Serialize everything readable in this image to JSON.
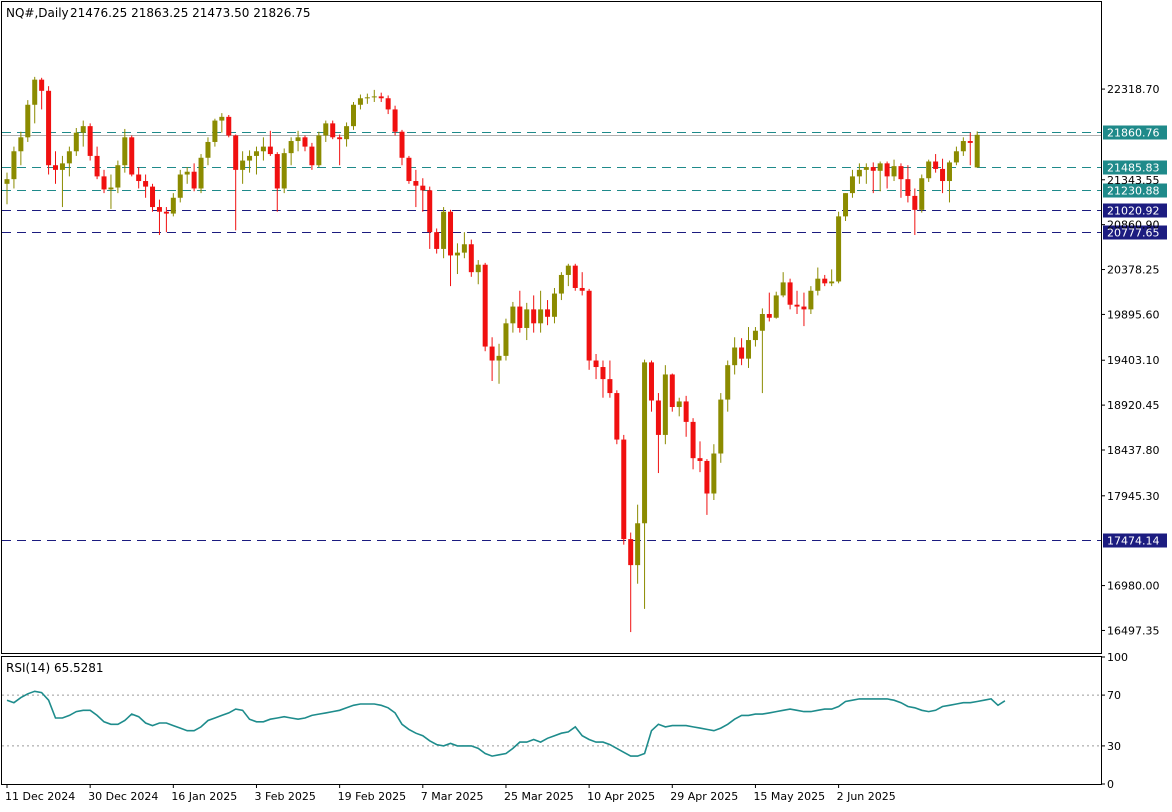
{
  "header": {
    "symbol_title": "NQ#,Daily",
    "ohlc_text": "21476.25 21863.25 21473.50 21826.75"
  },
  "rsi_panel": {
    "title": "RSI(14) 65.5281"
  },
  "colors": {
    "bull": "#8b8b00",
    "bear": "#f01010",
    "hline_teal": "#1f8a8a",
    "hline_navy": "#1c1c80",
    "rsi_line": "#1e8c8c",
    "level_line": "#9a9a9a",
    "axis": "#000000"
  },
  "chart_data": [
    {
      "type": "candlestick",
      "title": "NQ#,Daily",
      "ylim": [
        16255,
        23255
      ],
      "y_tick_labels": [
        "22318.70",
        "21343.55",
        "20860.90",
        "20378.25",
        "19895.60",
        "19403.10",
        "18920.45",
        "18437.80",
        "17945.30",
        "16980.00",
        "16497.35"
      ],
      "x_tick_labels": [
        "11 Dec 2024",
        "30 Dec 2024",
        "16 Jan 2025",
        "3 Feb 2025",
        "19 Feb 2025",
        "7 Mar 2025",
        "25 Mar 2025",
        "10 Apr 2025",
        "29 Apr 2025",
        "15 May 2025",
        "2 Jun 2025"
      ],
      "x_tick_bar_index": [
        0,
        12,
        24,
        36,
        48,
        60,
        72,
        84,
        96,
        108,
        120
      ],
      "horizontal_lines": [
        {
          "value": 21860.76,
          "label": "21860.76",
          "style": "dashed",
          "color": "teal",
          "label_bg": "teal"
        },
        {
          "value": 21485.83,
          "label": "21485.83",
          "style": "dashed",
          "color": "teal",
          "label_bg": "teal"
        },
        {
          "value": 21230.88,
          "label": "21230.88",
          "style": "dashed",
          "color": "teal",
          "label_bg": "teal"
        },
        {
          "value": 21020.92,
          "label": "21020.92",
          "style": "dashed",
          "color": "navy",
          "label_bg": "navy"
        },
        {
          "value": 20777.65,
          "label": "20777.65",
          "style": "dashed",
          "color": "navy",
          "label_bg": "navy"
        },
        {
          "value": 17474.14,
          "label": "17474.14",
          "style": "dashed",
          "color": "navy",
          "label_bg": "navy"
        }
      ],
      "current_price": 21826.75,
      "ohlc": [
        [
          21300,
          21420,
          21080,
          21350
        ],
        [
          21350,
          21700,
          21250,
          21650
        ],
        [
          21650,
          21860,
          21500,
          21800
        ],
        [
          21800,
          22200,
          21750,
          22150
        ],
        [
          22150,
          22450,
          21950,
          22420
        ],
        [
          22420,
          22440,
          22100,
          22300
        ],
        [
          22300,
          22350,
          21400,
          21500
        ],
        [
          21500,
          21650,
          21300,
          21450
        ],
        [
          21450,
          21600,
          21050,
          21520
        ],
        [
          21520,
          21700,
          21380,
          21650
        ],
        [
          21650,
          21900,
          21600,
          21850
        ],
        [
          21850,
          21980,
          21700,
          21920
        ],
        [
          21920,
          21950,
          21550,
          21600
        ],
        [
          21600,
          21700,
          21350,
          21380
        ],
        [
          21380,
          21450,
          21200,
          21240
        ],
        [
          21240,
          21400,
          21030,
          21260
        ],
        [
          21260,
          21550,
          21200,
          21500
        ],
        [
          21500,
          21890,
          21420,
          21800
        ],
        [
          21800,
          21820,
          21380,
          21400
        ],
        [
          21400,
          21480,
          21250,
          21330
        ],
        [
          21330,
          21400,
          21150,
          21270
        ],
        [
          21270,
          21300,
          21000,
          21050
        ],
        [
          21050,
          21130,
          20750,
          21000
        ],
        [
          21000,
          21050,
          20780,
          20980
        ],
        [
          20980,
          21200,
          20950,
          21150
        ],
        [
          21150,
          21450,
          21100,
          21400
        ],
        [
          21400,
          21480,
          21300,
          21430
        ],
        [
          21430,
          21520,
          21220,
          21250
        ],
        [
          21250,
          21620,
          21200,
          21580
        ],
        [
          21580,
          21800,
          21500,
          21750
        ],
        [
          21750,
          22000,
          21700,
          21980
        ],
        [
          21980,
          22060,
          21850,
          22020
        ],
        [
          22020,
          22040,
          21800,
          21820
        ],
        [
          21820,
          21830,
          20800,
          21450
        ],
        [
          21450,
          21650,
          21300,
          21550
        ],
        [
          21550,
          21660,
          21420,
          21600
        ],
        [
          21600,
          21700,
          21400,
          21650
        ],
        [
          21650,
          21800,
          21550,
          21700
        ],
        [
          21700,
          21870,
          21600,
          21620
        ],
        [
          21620,
          21640,
          21000,
          21250
        ],
        [
          21250,
          21680,
          21200,
          21630
        ],
        [
          21630,
          21800,
          21500,
          21760
        ],
        [
          21760,
          21870,
          21650,
          21800
        ],
        [
          21800,
          21820,
          21650,
          21700
        ],
        [
          21700,
          21740,
          21450,
          21500
        ],
        [
          21500,
          21860,
          21480,
          21820
        ],
        [
          21820,
          21980,
          21750,
          21950
        ],
        [
          21950,
          21980,
          21780,
          21800
        ],
        [
          21800,
          21830,
          21500,
          21780
        ],
        [
          21780,
          21960,
          21700,
          21920
        ],
        [
          21920,
          22180,
          21880,
          22150
        ],
        [
          22150,
          22260,
          22100,
          22220
        ],
        [
          22220,
          22270,
          22160,
          22230
        ],
        [
          22230,
          22310,
          22180,
          22240
        ],
        [
          22240,
          22280,
          22180,
          22220
        ],
        [
          22220,
          22250,
          22050,
          22100
        ],
        [
          22100,
          22140,
          21820,
          21860
        ],
        [
          21860,
          21880,
          21500,
          21580
        ],
        [
          21580,
          21600,
          21300,
          21330
        ],
        [
          21330,
          21450,
          21050,
          21280
        ],
        [
          21280,
          21360,
          21000,
          21230
        ],
        [
          21230,
          21270,
          20600,
          20780
        ],
        [
          20780,
          20820,
          20550,
          20600
        ],
        [
          20600,
          21050,
          20500,
          21000
        ],
        [
          21000,
          21020,
          20200,
          20530
        ],
        [
          20530,
          20660,
          20330,
          20560
        ],
        [
          20560,
          20780,
          20500,
          20650
        ],
        [
          20650,
          20700,
          20300,
          20350
        ],
        [
          20350,
          20480,
          20220,
          20430
        ],
        [
          20430,
          20450,
          19500,
          19550
        ],
        [
          19550,
          19650,
          19180,
          19400
        ],
        [
          19400,
          19580,
          19150,
          19450
        ],
        [
          19450,
          19850,
          19400,
          19800
        ],
        [
          19800,
          20030,
          19700,
          19980
        ],
        [
          19980,
          20150,
          19700,
          19750
        ],
        [
          19750,
          20020,
          19620,
          19950
        ],
        [
          19950,
          20100,
          19700,
          19800
        ],
        [
          19800,
          20150,
          19700,
          19950
        ],
        [
          19950,
          20050,
          19780,
          19870
        ],
        [
          19870,
          20180,
          19800,
          20120
        ],
        [
          20120,
          20350,
          20050,
          20320
        ],
        [
          20320,
          20440,
          20200,
          20420
        ],
        [
          20420,
          20440,
          20150,
          20180
        ],
        [
          20180,
          20350,
          20100,
          20150
        ],
        [
          20150,
          20170,
          19300,
          19400
        ],
        [
          19400,
          19470,
          19200,
          19330
        ],
        [
          19330,
          19400,
          19000,
          19200
        ],
        [
          19200,
          19400,
          19000,
          19050
        ],
        [
          19050,
          19080,
          18500,
          18550
        ],
        [
          18550,
          18600,
          17420,
          17480
        ],
        [
          17480,
          17550,
          16480,
          17200
        ],
        [
          17200,
          17850,
          17000,
          17650
        ],
        [
          17650,
          19410,
          16730,
          19380
        ],
        [
          19380,
          19400,
          18850,
          18970
        ],
        [
          18970,
          19050,
          18190,
          18600
        ],
        [
          18600,
          19350,
          18500,
          19250
        ],
        [
          19250,
          19260,
          18850,
          18900
        ],
        [
          18900,
          19000,
          18800,
          18960
        ],
        [
          18960,
          19020,
          18580,
          18740
        ],
        [
          18740,
          18780,
          18230,
          18350
        ],
        [
          18350,
          18530,
          18200,
          18320
        ],
        [
          18320,
          18340,
          17740,
          17970
        ],
        [
          17970,
          18500,
          17900,
          18400
        ],
        [
          18400,
          19050,
          18300,
          18980
        ],
        [
          18980,
          19400,
          18850,
          19350
        ],
        [
          19350,
          19650,
          19250,
          19540
        ],
        [
          19540,
          19640,
          19350,
          19420
        ],
        [
          19420,
          19760,
          19320,
          19620
        ],
        [
          19620,
          19760,
          19550,
          19720
        ],
        [
          19720,
          19960,
          19050,
          19900
        ],
        [
          19900,
          20130,
          19820,
          19860
        ],
        [
          19860,
          20140,
          19850,
          20100
        ],
        [
          20100,
          20350,
          20080,
          20240
        ],
        [
          20240,
          20280,
          19950,
          20000
        ],
        [
          20000,
          20150,
          19900,
          19980
        ],
        [
          19980,
          20130,
          19770,
          19950
        ],
        [
          19950,
          20200,
          19900,
          20150
        ],
        [
          20150,
          20400,
          20100,
          20280
        ],
        [
          20280,
          20320,
          20200,
          20230
        ],
        [
          20230,
          20380,
          20200,
          20250
        ],
        [
          20250,
          21000,
          20230,
          20950
        ],
        [
          20950,
          21200,
          20900,
          21200
        ],
        [
          21200,
          21450,
          21150,
          21380
        ],
        [
          21380,
          21520,
          21300,
          21450
        ],
        [
          21450,
          21520,
          21300,
          21480
        ],
        [
          21480,
          21530,
          21200,
          21440
        ],
        [
          21440,
          21540,
          21220,
          21520
        ],
        [
          21520,
          21540,
          21250,
          21380
        ],
        [
          21380,
          21560,
          21330,
          21490
        ],
        [
          21490,
          21520,
          21150,
          21350
        ],
        [
          21350,
          21500,
          21100,
          21170
        ],
        [
          21170,
          21250,
          20750,
          21020
        ],
        [
          21020,
          21400,
          20990,
          21360
        ],
        [
          21360,
          21560,
          21320,
          21540
        ],
        [
          21540,
          21620,
          21420,
          21460
        ],
        [
          21460,
          21570,
          21200,
          21330
        ],
        [
          21330,
          21550,
          21100,
          21530
        ],
        [
          21530,
          21700,
          21500,
          21650
        ],
        [
          21650,
          21800,
          21600,
          21760
        ],
        [
          21760,
          21850,
          21500,
          21740
        ],
        [
          21476.25,
          21863.25,
          21473.5,
          21826.75
        ]
      ]
    },
    {
      "type": "line",
      "title": "RSI(14) 65.5281",
      "ylim": [
        0,
        100
      ],
      "y_tick_labels": [
        "100",
        "70",
        "30",
        "0"
      ],
      "levels": [
        70,
        30
      ],
      "last_value": 65.5281,
      "values": [
        66,
        64,
        68,
        71,
        73,
        72,
        66,
        52,
        52,
        54,
        57,
        58,
        58,
        54,
        49,
        47,
        47,
        50,
        55,
        53,
        48,
        46,
        48,
        48,
        46,
        44,
        42,
        42,
        45,
        50,
        52,
        54,
        56,
        59,
        58,
        51,
        49,
        49,
        51,
        52,
        53,
        52,
        51,
        52,
        54,
        55,
        56,
        57,
        58,
        60,
        62,
        63,
        63,
        63,
        62,
        60,
        56,
        47,
        43,
        40,
        38,
        34,
        31,
        30,
        32,
        30,
        30,
        30,
        28,
        24,
        22,
        23,
        24,
        28,
        33,
        33,
        35,
        33,
        36,
        38,
        40,
        41,
        45,
        38,
        35,
        33,
        33,
        31,
        28,
        25,
        22,
        22,
        24,
        42,
        47,
        45,
        46,
        46,
        46,
        45,
        44,
        43,
        42,
        44,
        47,
        51,
        54,
        54,
        55,
        55,
        56,
        57,
        58,
        59,
        58,
        57,
        57,
        58,
        59,
        59,
        61,
        65,
        66,
        67,
        67,
        67,
        67,
        67,
        66,
        64,
        61,
        60,
        58,
        57,
        58,
        61,
        62,
        63,
        64,
        64,
        65,
        66,
        67,
        62,
        65.5281
      ]
    }
  ]
}
